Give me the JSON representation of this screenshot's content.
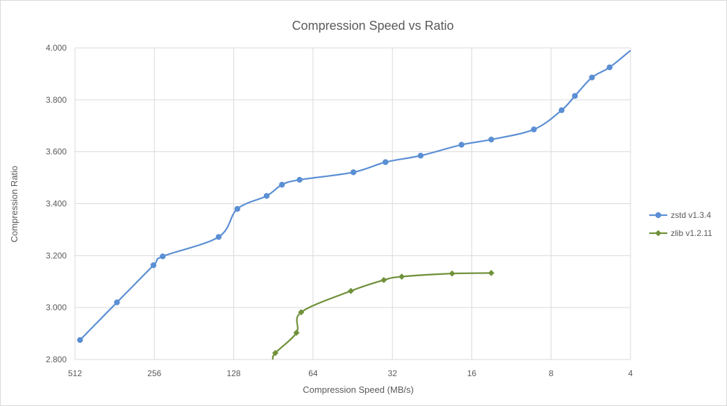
{
  "chart_data": {
    "type": "line",
    "title": "Compression Speed vs Ratio",
    "xlabel": "Compression Speed (MB/s)",
    "ylabel": "Compression Ratio",
    "x_scale": "log2-reversed",
    "xlim": [
      512,
      4
    ],
    "ylim": [
      2.8,
      4.0
    ],
    "x_ticks": [
      512,
      256,
      128,
      64,
      32,
      16,
      8,
      4
    ],
    "x_tick_labels": [
      "512",
      "256",
      "128",
      "64",
      "32",
      "16",
      "8",
      "4"
    ],
    "y_ticks": [
      2.8,
      3.0,
      3.2,
      3.4,
      3.6,
      3.8,
      4.0
    ],
    "y_tick_labels": [
      "2.800",
      "3.000",
      "3.200",
      "3.400",
      "3.600",
      "3.800",
      "4.000"
    ],
    "grid": "on",
    "legend_position": "right",
    "series": [
      {
        "name": "zstd v1.3.4",
        "color": "#5b8fd4",
        "marker": "circle",
        "x": [
          490,
          355,
          258,
          238,
          146,
          124,
          96,
          84,
          72,
          45,
          34,
          25,
          17.5,
          13.5,
          9.3,
          7.3,
          6.5,
          5.6,
          4.8
        ],
        "y": [
          2.875,
          3.02,
          3.163,
          3.197,
          3.272,
          3.38,
          3.43,
          3.473,
          3.492,
          3.521,
          3.56,
          3.585,
          3.627,
          3.647,
          3.686,
          3.76,
          3.815,
          3.886,
          3.925
        ],
        "line_extends_to": [
          4,
          3.99
        ]
      },
      {
        "name": "zlib v1.2.11",
        "color": "#70913a",
        "marker": "diamond",
        "x": [
          89,
          74,
          71,
          46,
          34.5,
          29.5,
          19,
          13.5
        ],
        "y": [
          2.825,
          2.903,
          2.982,
          3.064,
          3.106,
          3.119,
          3.131,
          3.133
        ],
        "line_starts_at": [
          91,
          2.8
        ]
      }
    ]
  }
}
